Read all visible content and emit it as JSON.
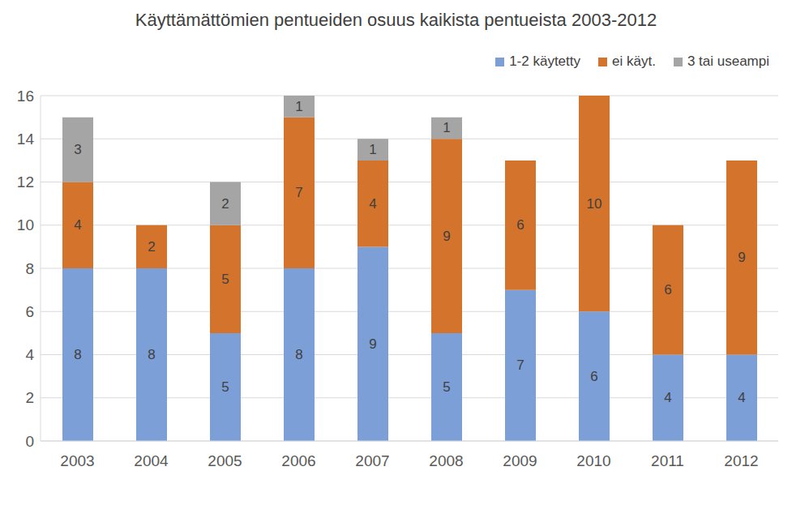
{
  "chart_data": {
    "type": "bar",
    "title": "Käyttämättömien pentueiden osuus kaikista pentueista 2003-2012",
    "categories": [
      "2003",
      "2004",
      "2005",
      "2006",
      "2007",
      "2008",
      "2009",
      "2010",
      "2011",
      "2012"
    ],
    "series": [
      {
        "name": "1-2 käytetty",
        "color": "#7B9FD6",
        "values": [
          8,
          8,
          5,
          8,
          9,
          5,
          7,
          6,
          4,
          4
        ]
      },
      {
        "name": "ei käyt.",
        "color": "#D4732B",
        "values": [
          4,
          2,
          5,
          7,
          4,
          9,
          6,
          10,
          6,
          9
        ]
      },
      {
        "name": "3 tai useampi",
        "color": "#A5A5A5",
        "values": [
          3,
          0,
          2,
          1,
          1,
          1,
          0,
          0,
          0,
          0
        ]
      }
    ],
    "ylim": [
      0,
      16
    ],
    "yticks": [
      0,
      2,
      4,
      6,
      8,
      10,
      12,
      14,
      16
    ],
    "grid": true,
    "stacked": true,
    "data_labels": true,
    "legend": "top-right"
  }
}
